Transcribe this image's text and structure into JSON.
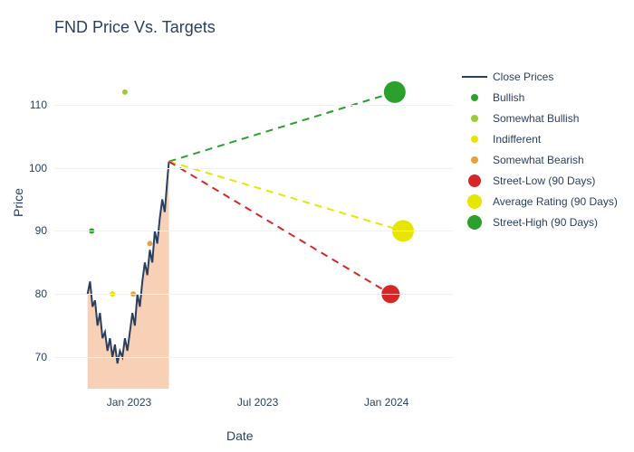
{
  "title": "FND Price Vs. Targets",
  "y_axis": {
    "label": "Price",
    "min": 65,
    "max": 118,
    "ticks": [
      70,
      80,
      90,
      100,
      110
    ]
  },
  "x_axis": {
    "label": "Date",
    "min": 0,
    "max": 480,
    "ticks": [
      {
        "pos": 90,
        "label": "Jan 2023"
      },
      {
        "pos": 245,
        "label": "Jul 2023"
      },
      {
        "pos": 400,
        "label": "Jan 2024"
      }
    ]
  },
  "gridline_color": "#eef2f6",
  "background_color": "#ffffff",
  "text_color": "#2a3f5f",
  "close_prices": {
    "color": "#2a3f5f",
    "fill": "#f4b183",
    "fill_opacity": 0.6,
    "line_width": 2,
    "points": [
      [
        40,
        80
      ],
      [
        43,
        82
      ],
      [
        46,
        78
      ],
      [
        49,
        79
      ],
      [
        52,
        75
      ],
      [
        55,
        77
      ],
      [
        58,
        73
      ],
      [
        61,
        74
      ],
      [
        64,
        71
      ],
      [
        67,
        73
      ],
      [
        70,
        70
      ],
      [
        73,
        72
      ],
      [
        76,
        69
      ],
      [
        79,
        71
      ],
      [
        82,
        70
      ],
      [
        85,
        73
      ],
      [
        88,
        71
      ],
      [
        91,
        74
      ],
      [
        94,
        77
      ],
      [
        97,
        75
      ],
      [
        100,
        80
      ],
      [
        103,
        78
      ],
      [
        106,
        82
      ],
      [
        109,
        85
      ],
      [
        112,
        83
      ],
      [
        115,
        87
      ],
      [
        118,
        85
      ],
      [
        121,
        90
      ],
      [
        124,
        88
      ],
      [
        127,
        92
      ],
      [
        130,
        95
      ],
      [
        133,
        93
      ],
      [
        136,
        98
      ],
      [
        138,
        101
      ]
    ]
  },
  "sentiment_points": {
    "bullish": {
      "color": "#2ca02c",
      "size": 6,
      "points": [
        [
          45,
          90
        ]
      ]
    },
    "somewhat_bullish": {
      "color": "#9acd32",
      "size": 6,
      "points": [
        [
          85,
          112
        ]
      ]
    },
    "indifferent": {
      "color": "#e6e600",
      "size": 6,
      "points": [
        [
          70,
          80
        ]
      ]
    },
    "somewhat_bearish": {
      "color": "#e6a23c",
      "size": 6,
      "points": [
        [
          95,
          80
        ],
        [
          115,
          88
        ]
      ]
    }
  },
  "projections": {
    "start": [
      138,
      101
    ],
    "street_low": {
      "color": "#d62728",
      "dash": "8,6",
      "line_width": 2,
      "end": [
        405,
        80
      ],
      "marker_size": 10
    },
    "average_rating": {
      "color": "#e6e600",
      "dash": "8,6",
      "line_width": 2,
      "end": [
        420,
        90
      ],
      "marker_size": 12
    },
    "street_high": {
      "color": "#2ca02c",
      "dash": "8,6",
      "line_width": 2,
      "end": [
        410,
        112
      ],
      "marker_size": 12
    }
  },
  "legend": [
    {
      "type": "line",
      "label": "Close Prices",
      "color": "#2a3f5f",
      "line_width": 2
    },
    {
      "type": "dot",
      "label": "Bullish",
      "color": "#2ca02c",
      "size": 8
    },
    {
      "type": "dot",
      "label": "Somewhat Bullish",
      "color": "#9acd32",
      "size": 8
    },
    {
      "type": "dot",
      "label": "Indifferent",
      "color": "#e6e600",
      "size": 8
    },
    {
      "type": "dot",
      "label": "Somewhat Bearish",
      "color": "#e6a23c",
      "size": 8
    },
    {
      "type": "dot",
      "label": "Street-Low (90 Days)",
      "color": "#d62728",
      "size": 14
    },
    {
      "type": "dot",
      "label": "Average Rating (90 Days)",
      "color": "#e6e600",
      "size": 16
    },
    {
      "type": "dot",
      "label": "Street-High (90 Days)",
      "color": "#2ca02c",
      "size": 16
    }
  ]
}
